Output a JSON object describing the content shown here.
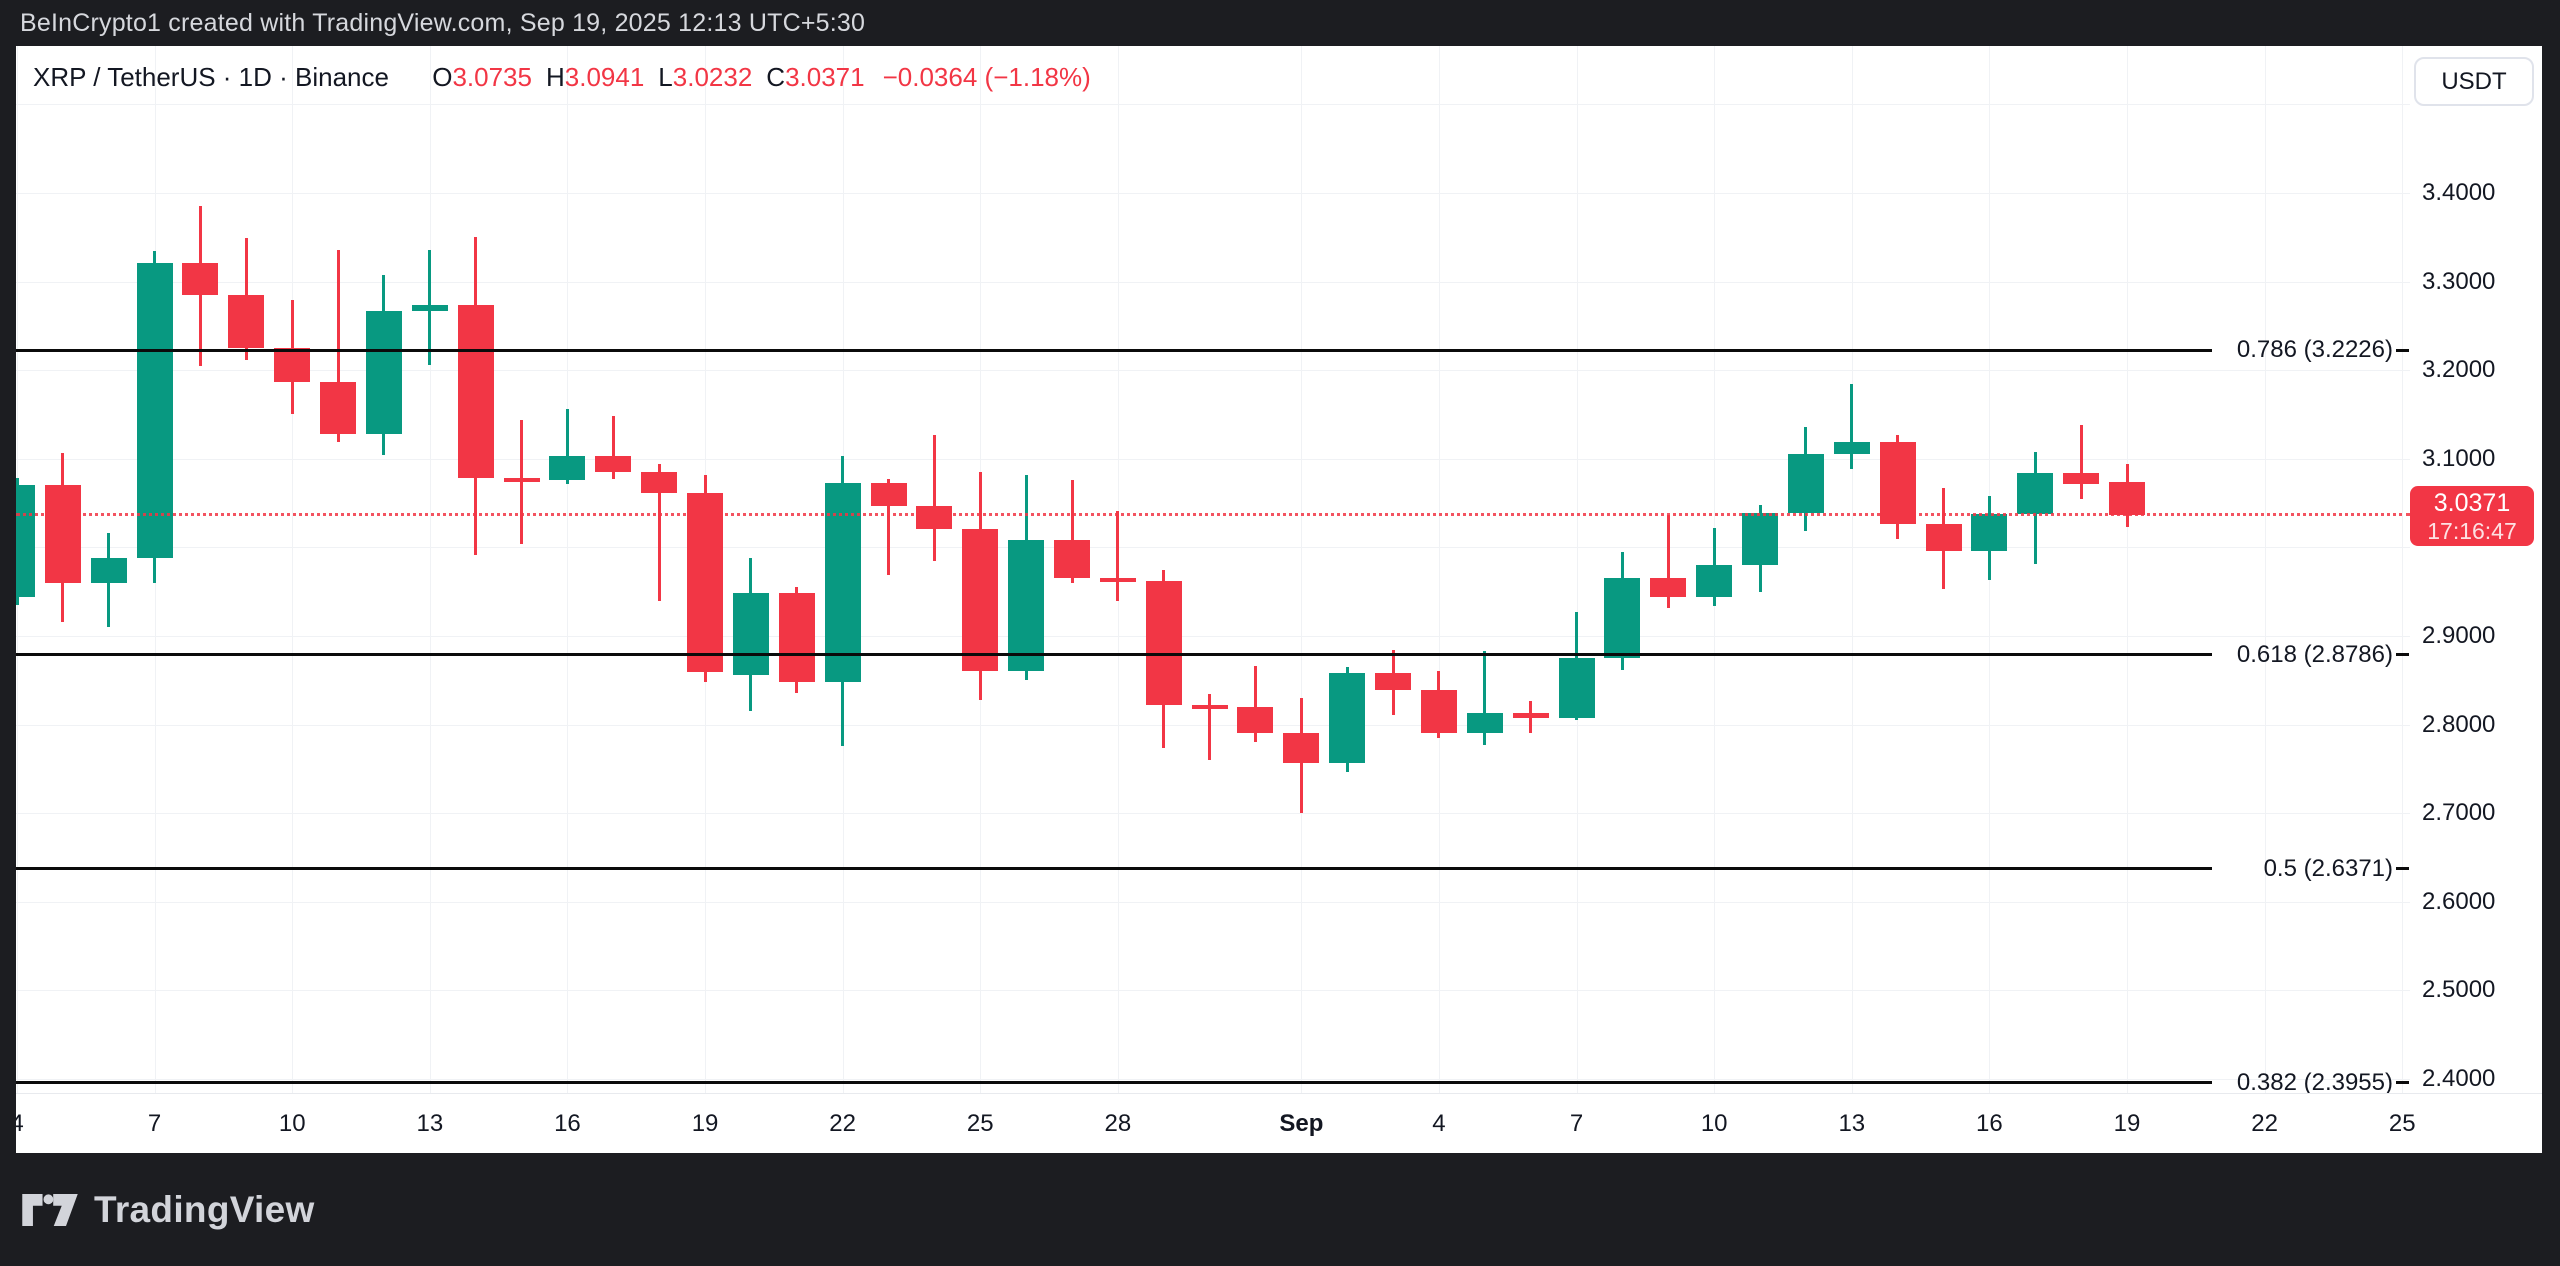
{
  "top_bar": {
    "attribution": "BeInCrypto1 created with TradingView.com, Sep 19, 2025 12:13 UTC+5:30"
  },
  "legend": {
    "symbol": "XRP / TetherUS · 1D · Binance",
    "o_label": "O",
    "o_value": "3.0735",
    "h_label": "H",
    "h_value": "3.0941",
    "l_label": "L",
    "l_value": "3.0232",
    "c_label": "C",
    "c_value": "3.0371",
    "change": "−0.0364 (−1.18%)"
  },
  "currency_button": "USDT",
  "footer": {
    "brand": "TradingView"
  },
  "colors": {
    "up": "#089981",
    "down": "#f23645",
    "accent_red": "#f23645",
    "frame": "#1c1d21",
    "grid": "#f0f2f5",
    "fib": "#0b0b0b"
  },
  "chart_data": {
    "type": "candlestick",
    "title": "XRP / TetherUS · 1D · Binance",
    "symbol": "XRP/USDT",
    "exchange": "Binance",
    "interval": "1D",
    "y_axis": {
      "min": 2.35,
      "max": 3.46,
      "grid": true,
      "grid_prices": [
        3.5,
        3.4,
        3.3,
        3.2,
        3.1,
        3.0,
        2.9,
        2.8,
        2.7,
        2.6,
        2.5,
        2.4
      ],
      "labels": [
        {
          "price": 3.4,
          "text": "3.4000"
        },
        {
          "price": 3.3,
          "text": "3.3000"
        },
        {
          "price": 3.2,
          "text": "3.2000"
        },
        {
          "price": 3.1,
          "text": "3.1000"
        },
        {
          "price": 2.9,
          "text": "2.9000"
        },
        {
          "price": 2.8,
          "text": "2.8000"
        },
        {
          "price": 2.7,
          "text": "2.7000"
        },
        {
          "price": 2.6,
          "text": "2.6000"
        },
        {
          "price": 2.5,
          "text": "2.5000"
        },
        {
          "price": 2.4,
          "text": "2.4000"
        }
      ]
    },
    "x_axis": {
      "ticks": [
        {
          "i": 0,
          "text": "4",
          "bold": false
        },
        {
          "i": 3,
          "text": "7",
          "bold": false
        },
        {
          "i": 6,
          "text": "10",
          "bold": false
        },
        {
          "i": 9,
          "text": "13",
          "bold": false
        },
        {
          "i": 12,
          "text": "16",
          "bold": false
        },
        {
          "i": 15,
          "text": "19",
          "bold": false
        },
        {
          "i": 18,
          "text": "22",
          "bold": false
        },
        {
          "i": 21,
          "text": "25",
          "bold": false
        },
        {
          "i": 24,
          "text": "28",
          "bold": false
        },
        {
          "i": 28,
          "text": "Sep",
          "bold": true
        },
        {
          "i": 31,
          "text": "4",
          "bold": false
        },
        {
          "i": 34,
          "text": "7",
          "bold": false
        },
        {
          "i": 37,
          "text": "10",
          "bold": false
        },
        {
          "i": 40,
          "text": "13",
          "bold": false
        },
        {
          "i": 43,
          "text": "16",
          "bold": false
        },
        {
          "i": 46,
          "text": "19",
          "bold": false
        },
        {
          "i": 49,
          "text": "22",
          "bold": false
        },
        {
          "i": 52,
          "text": "25",
          "bold": false
        }
      ]
    },
    "fib_levels": [
      {
        "ratio": "0.786",
        "price": 3.2226,
        "label": "0.786 (3.2226)"
      },
      {
        "ratio": "0.618",
        "price": 2.8786,
        "label": "0.618 (2.8786)"
      },
      {
        "ratio": "0.5",
        "price": 2.6371,
        "label": "0.5 (2.6371)"
      },
      {
        "ratio": "0.382",
        "price": 2.3955,
        "label": "0.382 (2.3955)"
      }
    ],
    "last_price": {
      "value": 3.0371,
      "text": "3.0371",
      "countdown": "17:16:47",
      "direction": "down"
    },
    "candles": [
      {
        "date": "Aug 4",
        "o": 2.944,
        "h": 3.078,
        "l": 2.935,
        "c": 3.07
      },
      {
        "date": "Aug 5",
        "o": 3.07,
        "h": 3.106,
        "l": 2.916,
        "c": 2.96
      },
      {
        "date": "Aug 6",
        "o": 2.96,
        "h": 3.016,
        "l": 2.91,
        "c": 2.988
      },
      {
        "date": "Aug 7",
        "o": 2.988,
        "h": 3.335,
        "l": 2.96,
        "c": 3.321
      },
      {
        "date": "Aug 8",
        "o": 3.321,
        "h": 3.385,
        "l": 3.205,
        "c": 3.285
      },
      {
        "date": "Aug 9",
        "o": 3.285,
        "h": 3.349,
        "l": 3.211,
        "c": 3.225
      },
      {
        "date": "Aug 10",
        "o": 3.225,
        "h": 3.279,
        "l": 3.151,
        "c": 3.187
      },
      {
        "date": "Aug 11",
        "o": 3.187,
        "h": 3.336,
        "l": 3.119,
        "c": 3.128
      },
      {
        "date": "Aug 12",
        "o": 3.128,
        "h": 3.307,
        "l": 3.104,
        "c": 3.267
      },
      {
        "date": "Aug 13",
        "o": 3.267,
        "h": 3.336,
        "l": 3.206,
        "c": 3.274
      },
      {
        "date": "Aug 14",
        "o": 3.274,
        "h": 3.35,
        "l": 2.991,
        "c": 3.078
      },
      {
        "date": "Aug 15",
        "o": 3.078,
        "h": 3.144,
        "l": 3.004,
        "c": 3.076
      },
      {
        "date": "Aug 16",
        "o": 3.076,
        "h": 3.156,
        "l": 3.072,
        "c": 3.103
      },
      {
        "date": "Aug 17",
        "o": 3.103,
        "h": 3.148,
        "l": 3.077,
        "c": 3.085
      },
      {
        "date": "Aug 18",
        "o": 3.085,
        "h": 3.094,
        "l": 2.94,
        "c": 3.061
      },
      {
        "date": "Aug 19",
        "o": 3.061,
        "h": 3.082,
        "l": 2.848,
        "c": 2.859
      },
      {
        "date": "Aug 20",
        "o": 2.856,
        "h": 2.988,
        "l": 2.815,
        "c": 2.948
      },
      {
        "date": "Aug 21",
        "o": 2.948,
        "h": 2.955,
        "l": 2.836,
        "c": 2.848
      },
      {
        "date": "Aug 22",
        "o": 2.848,
        "h": 3.103,
        "l": 2.776,
        "c": 3.073
      },
      {
        "date": "Aug 23",
        "o": 3.073,
        "h": 3.077,
        "l": 2.969,
        "c": 3.047
      },
      {
        "date": "Aug 24",
        "o": 3.047,
        "h": 3.127,
        "l": 2.985,
        "c": 3.021
      },
      {
        "date": "Aug 25",
        "o": 3.021,
        "h": 3.085,
        "l": 2.828,
        "c": 2.86
      },
      {
        "date": "Aug 26",
        "o": 2.86,
        "h": 3.082,
        "l": 2.85,
        "c": 3.008
      },
      {
        "date": "Aug 27",
        "o": 3.008,
        "h": 3.076,
        "l": 2.96,
        "c": 2.966
      },
      {
        "date": "Aug 28",
        "o": 2.966,
        "h": 3.041,
        "l": 2.94,
        "c": 2.962
      },
      {
        "date": "Aug 29",
        "o": 2.962,
        "h": 2.975,
        "l": 2.774,
        "c": 2.822
      },
      {
        "date": "Aug 30",
        "o": 2.822,
        "h": 2.834,
        "l": 2.76,
        "c": 2.82
      },
      {
        "date": "Aug 31",
        "o": 2.82,
        "h": 2.866,
        "l": 2.78,
        "c": 2.79
      },
      {
        "date": "Sep 1",
        "o": 2.79,
        "h": 2.83,
        "l": 2.7,
        "c": 2.757
      },
      {
        "date": "Sep 2",
        "o": 2.757,
        "h": 2.865,
        "l": 2.747,
        "c": 2.858
      },
      {
        "date": "Sep 3",
        "o": 2.858,
        "h": 2.884,
        "l": 2.811,
        "c": 2.839
      },
      {
        "date": "Sep 4",
        "o": 2.839,
        "h": 2.861,
        "l": 2.785,
        "c": 2.791
      },
      {
        "date": "Sep 5",
        "o": 2.791,
        "h": 2.883,
        "l": 2.777,
        "c": 2.813
      },
      {
        "date": "Sep 6",
        "o": 2.813,
        "h": 2.827,
        "l": 2.791,
        "c": 2.807
      },
      {
        "date": "Sep 7",
        "o": 2.807,
        "h": 2.927,
        "l": 2.805,
        "c": 2.875
      },
      {
        "date": "Sep 8",
        "o": 2.875,
        "h": 2.995,
        "l": 2.862,
        "c": 2.966
      },
      {
        "date": "Sep 9",
        "o": 2.966,
        "h": 3.037,
        "l": 2.932,
        "c": 2.944
      },
      {
        "date": "Sep 10",
        "o": 2.944,
        "h": 3.022,
        "l": 2.934,
        "c": 2.98
      },
      {
        "date": "Sep 11",
        "o": 2.98,
        "h": 3.048,
        "l": 2.95,
        "c": 3.039
      },
      {
        "date": "Sep 12",
        "o": 3.039,
        "h": 3.136,
        "l": 3.018,
        "c": 3.105
      },
      {
        "date": "Sep 13",
        "o": 3.105,
        "h": 3.184,
        "l": 3.089,
        "c": 3.119
      },
      {
        "date": "Sep 14",
        "o": 3.119,
        "h": 3.127,
        "l": 3.009,
        "c": 3.026
      },
      {
        "date": "Sep 15",
        "o": 3.026,
        "h": 3.067,
        "l": 2.953,
        "c": 2.996
      },
      {
        "date": "Sep 16",
        "o": 2.996,
        "h": 3.058,
        "l": 2.963,
        "c": 3.038
      },
      {
        "date": "Sep 17",
        "o": 3.038,
        "h": 3.108,
        "l": 2.981,
        "c": 3.084
      },
      {
        "date": "Sep 18",
        "o": 3.084,
        "h": 3.138,
        "l": 3.055,
        "c": 3.071
      },
      {
        "date": "Sep 19",
        "o": 3.0735,
        "h": 3.0941,
        "l": 3.0232,
        "c": 3.0371
      }
    ]
  }
}
